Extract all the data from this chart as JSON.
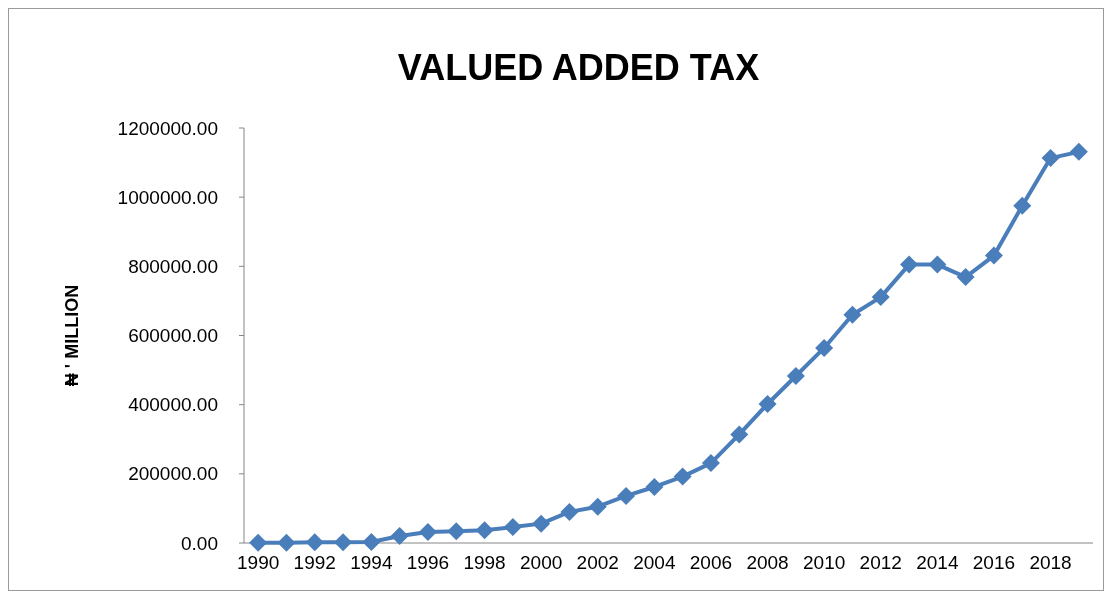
{
  "chart_data": {
    "type": "line",
    "title": "VALUED ADDED TAX",
    "ylabel": "₦ ' MILLION",
    "categories": [
      "1990",
      null,
      "1992",
      null,
      "1994",
      null,
      "1996",
      null,
      "1998",
      null,
      "2000",
      null,
      "2002",
      null,
      "2004",
      null,
      "2006",
      null,
      "2008",
      null,
      "2010",
      null,
      "2012",
      null,
      "2014",
      null,
      "2016",
      null,
      "2018",
      null
    ],
    "series": [
      {
        "color": "#4a7ebb",
        "values": [
          1000,
          1000,
          2000,
          2000,
          3000,
          20000,
          32000,
          34000,
          37000,
          46000,
          56000,
          90000,
          105000,
          136000,
          162000,
          192000,
          231000,
          314000,
          402000,
          483000,
          564000,
          660000,
          711000,
          805000,
          805000,
          769000,
          831000,
          975000,
          1113000,
          1131000
        ]
      }
    ],
    "ylim": [
      0,
      1200000
    ],
    "yticks": [
      {
        "value": 0,
        "label": "0.00"
      },
      {
        "value": 200000,
        "label": "200000.00"
      },
      {
        "value": 400000,
        "label": "400000.00"
      },
      {
        "value": 600000,
        "label": "600000.00"
      },
      {
        "value": 800000,
        "label": "800000.00"
      },
      {
        "value": 1000000,
        "label": "1000000.00"
      },
      {
        "value": 1200000,
        "label": "1200000.00"
      }
    ],
    "marker": "diamond",
    "line_style": "solid",
    "grid": false
  }
}
